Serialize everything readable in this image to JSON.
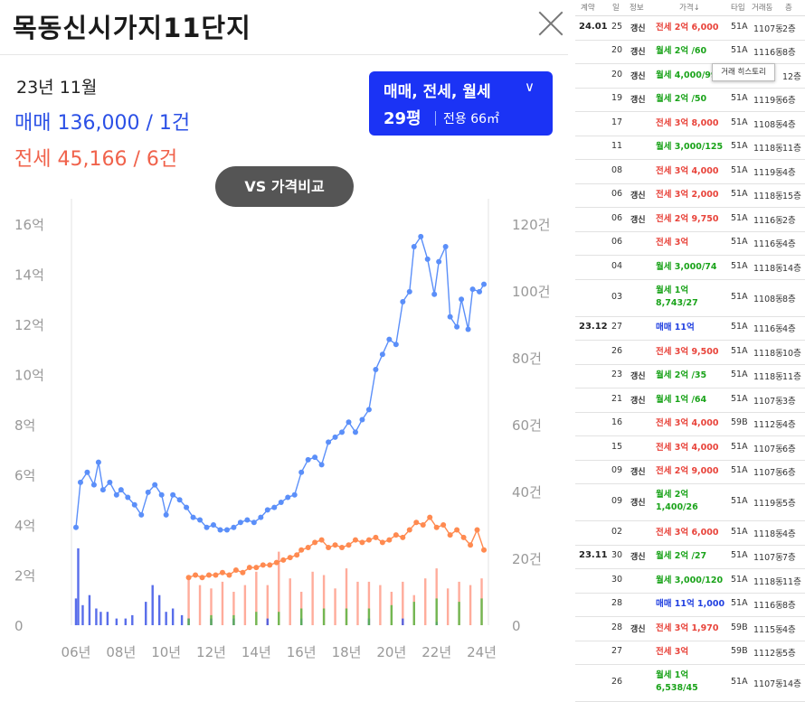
{
  "header": {
    "title": "목동신시가지11단지"
  },
  "summary": {
    "period": "23년 11월",
    "sale": "매매 136,000 / 1건",
    "jeonse": "전세 45,166 / 6건"
  },
  "filter": {
    "types": "매매, 전세, 월세",
    "pyeong": "29평",
    "area": "전용 66㎡"
  },
  "compare_button": "VS 가격비교",
  "tooltip": "거래 히스토리",
  "colors": {
    "sale": "#5b8ff9",
    "jeonse": "#ff8a50",
    "sale_bar": "#3b54e6",
    "jeonse_bar": "#ff9d8a",
    "wolse_bar": "#59b845",
    "accent": "#1b33f5"
  },
  "chart_data": {
    "type": "line",
    "left_axis": {
      "ticks": [
        "0",
        "2억",
        "4억",
        "6억",
        "8억",
        "10억",
        "12억",
        "14억",
        "16억"
      ],
      "ylim": [
        0,
        16
      ]
    },
    "right_axis": {
      "ticks": [
        "0",
        "20건",
        "40건",
        "60건",
        "80건",
        "100건",
        "120건"
      ],
      "ylim": [
        0,
        120
      ]
    },
    "x_ticks": [
      "06년",
      "08년",
      "10년",
      "12년",
      "14년",
      "16년",
      "18년",
      "20년",
      "22년",
      "24년"
    ],
    "xlim": [
      2005.8,
      2024.3
    ],
    "series": [
      {
        "key": "sale",
        "axis": "left",
        "x": [
          2006.0,
          2006.2,
          2006.5,
          2006.8,
          2007.0,
          2007.2,
          2007.5,
          2007.8,
          2008.0,
          2008.3,
          2008.6,
          2008.9,
          2009.2,
          2009.5,
          2009.8,
          2010.0,
          2010.3,
          2010.6,
          2010.9,
          2011.2,
          2011.5,
          2011.8,
          2012.1,
          2012.4,
          2012.7,
          2013.0,
          2013.3,
          2013.6,
          2013.9,
          2014.2,
          2014.5,
          2014.8,
          2015.1,
          2015.4,
          2015.7,
          2016.0,
          2016.3,
          2016.6,
          2016.9,
          2017.2,
          2017.5,
          2017.8,
          2018.1,
          2018.4,
          2018.7,
          2019.0,
          2019.3,
          2019.6,
          2019.9,
          2020.2,
          2020.5,
          2020.8,
          2021.0,
          2021.3,
          2021.6,
          2021.9,
          2022.1,
          2022.4,
          2022.6,
          2022.9,
          2023.1,
          2023.4,
          2023.6,
          2023.9,
          2024.1
        ],
        "y": [
          3.9,
          5.7,
          6.1,
          5.6,
          6.5,
          5.4,
          5.7,
          5.2,
          5.4,
          5.1,
          4.8,
          4.4,
          5.3,
          5.6,
          5.2,
          4.4,
          5.2,
          5.0,
          4.7,
          4.3,
          4.2,
          3.9,
          4.0,
          3.8,
          3.8,
          3.9,
          4.1,
          4.2,
          4.1,
          4.3,
          4.6,
          4.7,
          4.9,
          5.1,
          5.2,
          6.1,
          6.6,
          6.7,
          6.4,
          7.3,
          7.5,
          7.7,
          8.1,
          7.7,
          8.2,
          8.6,
          10.2,
          10.8,
          11.4,
          11.2,
          12.9,
          13.3,
          15.1,
          15.5,
          14.6,
          13.2,
          14.5,
          15.1,
          12.3,
          11.9,
          13.0,
          11.8,
          13.4,
          13.3,
          13.6
        ]
      },
      {
        "key": "jeonse",
        "axis": "left",
        "x": [
          2011.0,
          2011.3,
          2011.6,
          2011.9,
          2012.2,
          2012.5,
          2012.8,
          2013.1,
          2013.4,
          2013.7,
          2014.0,
          2014.3,
          2014.6,
          2014.9,
          2015.2,
          2015.5,
          2015.8,
          2016.0,
          2016.3,
          2016.6,
          2016.9,
          2017.2,
          2017.5,
          2017.8,
          2018.1,
          2018.4,
          2018.7,
          2019.0,
          2019.3,
          2019.6,
          2019.9,
          2020.2,
          2020.5,
          2020.8,
          2021.1,
          2021.4,
          2021.7,
          2022.0,
          2022.3,
          2022.6,
          2022.9,
          2023.2,
          2023.5,
          2023.8,
          2024.1
        ],
        "y": [
          1.9,
          2.0,
          1.9,
          2.0,
          2.0,
          2.1,
          2.0,
          2.2,
          2.1,
          2.3,
          2.3,
          2.4,
          2.4,
          2.5,
          2.6,
          2.7,
          2.8,
          3.0,
          3.1,
          3.3,
          3.4,
          3.1,
          3.2,
          3.1,
          3.2,
          3.4,
          3.3,
          3.4,
          3.5,
          3.3,
          3.4,
          3.6,
          3.5,
          3.8,
          4.1,
          4.0,
          4.3,
          3.9,
          4.0,
          3.6,
          3.8,
          3.5,
          3.2,
          3.8,
          3.0
        ]
      }
    ],
    "volume_bars": {
      "axis": "right",
      "sale": {
        "x": [
          2006.0,
          2006.1,
          2006.3,
          2006.6,
          2006.9,
          2007.1,
          2007.4,
          2007.8,
          2008.2,
          2008.5,
          2009.1,
          2009.4,
          2009.7,
          2010.0,
          2010.3,
          2010.7,
          2011.0,
          2012.0,
          2013.0,
          2014.5,
          2016.0,
          2019.0,
          2020.5,
          2022.0
        ],
        "v": [
          8,
          23,
          6,
          9,
          5,
          4,
          4,
          2,
          2,
          3,
          7,
          12,
          9,
          4,
          5,
          3,
          2,
          2,
          2,
          2,
          2,
          2,
          2,
          1
        ]
      },
      "jeonse": {
        "x": [
          2011.0,
          2011.5,
          2012.0,
          2012.5,
          2013.0,
          2013.5,
          2014.0,
          2014.5,
          2015.0,
          2015.5,
          2016.0,
          2016.5,
          2017.0,
          2017.5,
          2018.0,
          2018.5,
          2019.0,
          2019.5,
          2020.0,
          2020.5,
          2021.0,
          2021.5,
          2022.0,
          2022.5,
          2023.0,
          2023.5,
          2024.0
        ],
        "v": [
          14,
          12,
          11,
          13,
          10,
          12,
          16,
          12,
          22,
          14,
          10,
          16,
          15,
          11,
          17,
          13,
          13,
          12,
          10,
          13,
          9,
          14,
          17,
          11,
          13,
          12,
          14
        ]
      },
      "wolse": {
        "x": [
          2011.0,
          2012.0,
          2013.0,
          2014.0,
          2015.0,
          2016.0,
          2017.0,
          2018.0,
          2019.0,
          2020.0,
          2021.0,
          2022.0,
          2023.0,
          2024.0
        ],
        "v": [
          2,
          3,
          3,
          4,
          4,
          5,
          5,
          5,
          5,
          6,
          7,
          8,
          7,
          8
        ]
      }
    }
  },
  "table": {
    "headers": [
      "계약",
      "일",
      "정보",
      "가격↓",
      "타입",
      "거래동",
      "층"
    ],
    "rows": [
      {
        "date": "24.01",
        "day": "25",
        "info": "갱신",
        "kind": "jeonse",
        "price": "전세 2억 6,000",
        "type": "51A",
        "bldg": "1107동",
        "floor": "2층"
      },
      {
        "date": "",
        "day": "20",
        "info": "갱신",
        "kind": "wolse",
        "price": "월세 2억 /60",
        "type": "51A",
        "bldg": "1116동",
        "floor": "8층"
      },
      {
        "date": "",
        "day": "20",
        "info": "갱신",
        "kind": "wolse",
        "price": "월세 4,000/99",
        "type": "51A",
        "bldg": "",
        "floor": "12층"
      },
      {
        "date": "",
        "day": "19",
        "info": "갱신",
        "kind": "wolse",
        "price": "월세 2억 /50",
        "type": "51A",
        "bldg": "1119동",
        "floor": "6층"
      },
      {
        "date": "",
        "day": "17",
        "info": "",
        "kind": "jeonse",
        "price": "전세 3억 8,000",
        "type": "51A",
        "bldg": "1108동",
        "floor": "4층"
      },
      {
        "date": "",
        "day": "11",
        "info": "",
        "kind": "wolse",
        "price": "월세 3,000/125",
        "type": "51A",
        "bldg": "1118동",
        "floor": "11층"
      },
      {
        "date": "",
        "day": "08",
        "info": "",
        "kind": "jeonse",
        "price": "전세 3억 4,000",
        "type": "51A",
        "bldg": "1119동",
        "floor": "4층"
      },
      {
        "date": "",
        "day": "06",
        "info": "갱신",
        "kind": "jeonse",
        "price": "전세 3억 2,000",
        "type": "51A",
        "bldg": "1118동",
        "floor": "15층"
      },
      {
        "date": "",
        "day": "06",
        "info": "갱신",
        "kind": "jeonse",
        "price": "전세 2억 9,750",
        "type": "51A",
        "bldg": "1116동",
        "floor": "2층"
      },
      {
        "date": "",
        "day": "06",
        "info": "",
        "kind": "jeonse",
        "price": "전세 3억",
        "type": "51A",
        "bldg": "1116동",
        "floor": "4층"
      },
      {
        "date": "",
        "day": "04",
        "info": "",
        "kind": "wolse",
        "price": "월세 3,000/74",
        "type": "51A",
        "bldg": "1118동",
        "floor": "14층"
      },
      {
        "date": "",
        "day": "03",
        "info": "",
        "kind": "wolse",
        "price": "월세 1억",
        "price2": "8,743/27",
        "type": "51A",
        "bldg": "1108동",
        "floor": "8층"
      },
      {
        "date": "23.12",
        "day": "27",
        "info": "",
        "kind": "sale",
        "price": "매매 11억",
        "type": "51A",
        "bldg": "1116동",
        "floor": "4층"
      },
      {
        "date": "",
        "day": "26",
        "info": "",
        "kind": "jeonse",
        "price": "전세 3억 9,500",
        "type": "51A",
        "bldg": "1118동",
        "floor": "10층"
      },
      {
        "date": "",
        "day": "23",
        "info": "갱신",
        "kind": "wolse",
        "price": "월세 2억 /35",
        "type": "51A",
        "bldg": "1118동",
        "floor": "11층"
      },
      {
        "date": "",
        "day": "21",
        "info": "갱신",
        "kind": "wolse",
        "price": "월세 1억 /64",
        "type": "51A",
        "bldg": "1107동",
        "floor": "3층"
      },
      {
        "date": "",
        "day": "16",
        "info": "",
        "kind": "jeonse",
        "price": "전세 3억 4,000",
        "type": "59B",
        "bldg": "1112동",
        "floor": "4층"
      },
      {
        "date": "",
        "day": "15",
        "info": "",
        "kind": "jeonse",
        "price": "전세 3억 4,000",
        "type": "51A",
        "bldg": "1107동",
        "floor": "6층"
      },
      {
        "date": "",
        "day": "09",
        "info": "갱신",
        "kind": "jeonse",
        "price": "전세 2억 9,000",
        "type": "51A",
        "bldg": "1107동",
        "floor": "6층"
      },
      {
        "date": "",
        "day": "09",
        "info": "갱신",
        "kind": "wolse",
        "price": "월세 2억",
        "price2": "1,400/26",
        "type": "51A",
        "bldg": "1119동",
        "floor": "5층"
      },
      {
        "date": "",
        "day": "02",
        "info": "",
        "kind": "jeonse",
        "price": "전세 3억 6,000",
        "type": "51A",
        "bldg": "1118동",
        "floor": "4층"
      },
      {
        "date": "23.11",
        "day": "30",
        "info": "갱신",
        "kind": "wolse",
        "price": "월세 2억 /27",
        "type": "51A",
        "bldg": "1107동",
        "floor": "7층"
      },
      {
        "date": "",
        "day": "30",
        "info": "",
        "kind": "wolse",
        "price": "월세 3,000/120",
        "type": "51A",
        "bldg": "1118동",
        "floor": "11층"
      },
      {
        "date": "",
        "day": "28",
        "info": "",
        "kind": "sale",
        "price": "매매 11억 1,000",
        "type": "51A",
        "bldg": "1116동",
        "floor": "8층"
      },
      {
        "date": "",
        "day": "28",
        "info": "갱신",
        "kind": "jeonse",
        "price": "전세 3억 1,970",
        "type": "59B",
        "bldg": "1115동",
        "floor": "4층"
      },
      {
        "date": "",
        "day": "27",
        "info": "",
        "kind": "jeonse",
        "price": "전세 3억",
        "type": "59B",
        "bldg": "1112동",
        "floor": "5층"
      },
      {
        "date": "",
        "day": "26",
        "info": "",
        "kind": "wolse",
        "price": "월세 1억",
        "price2": "6,538/45",
        "type": "51A",
        "bldg": "1107동",
        "floor": "14층"
      }
    ]
  }
}
